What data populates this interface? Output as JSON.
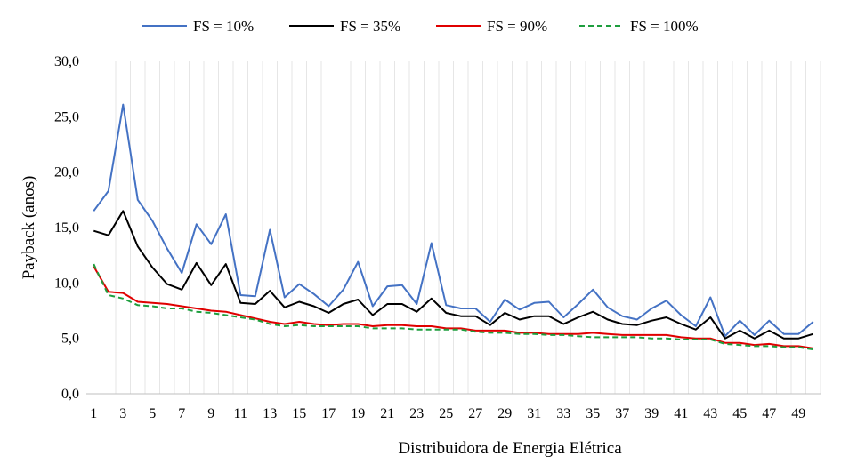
{
  "chart_data": {
    "type": "line",
    "title": "",
    "xlabel": "Distribuidora de Energia Elétrica",
    "ylabel": "Payback (anos)",
    "ylim": [
      0,
      30
    ],
    "yticks": [
      "0,0",
      "5,0",
      "10,0",
      "15,0",
      "20,0",
      "25,0",
      "30,0"
    ],
    "x": [
      1,
      2,
      3,
      4,
      5,
      6,
      7,
      8,
      9,
      10,
      11,
      12,
      13,
      14,
      15,
      16,
      17,
      18,
      19,
      20,
      21,
      22,
      23,
      24,
      25,
      26,
      27,
      28,
      29,
      30,
      31,
      32,
      33,
      34,
      35,
      36,
      37,
      38,
      39,
      40,
      41,
      42,
      43,
      44,
      45,
      46,
      47,
      48,
      49,
      50
    ],
    "xtick_labels": [
      "1",
      "3",
      "5",
      "7",
      "9",
      "11",
      "13",
      "15",
      "17",
      "19",
      "21",
      "23",
      "25",
      "27",
      "29",
      "31",
      "33",
      "35",
      "37",
      "39",
      "41",
      "43",
      "45",
      "47",
      "49"
    ],
    "grid": "vertical",
    "legend_position": "top",
    "series": [
      {
        "name": "FS = 10%",
        "color": "#4472C4",
        "dash": "solid",
        "values": [
          16.5,
          18.3,
          26.1,
          17.5,
          15.6,
          13.1,
          10.9,
          15.3,
          13.5,
          16.2,
          8.9,
          8.8,
          14.8,
          8.7,
          9.9,
          9.0,
          7.9,
          9.4,
          11.9,
          7.9,
          9.7,
          9.8,
          8.1,
          13.6,
          8.0,
          7.7,
          7.7,
          6.5,
          8.5,
          7.6,
          8.2,
          8.3,
          6.9,
          8.1,
          9.4,
          7.8,
          7.0,
          6.7,
          7.7,
          8.4,
          7.1,
          6.1,
          8.7,
          5.2,
          6.6,
          5.3,
          6.6,
          5.4,
          5.4,
          6.5
        ]
      },
      {
        "name": "FS = 35%",
        "color": "#000000",
        "dash": "solid",
        "values": [
          14.7,
          14.3,
          16.5,
          13.3,
          11.4,
          9.9,
          9.4,
          11.8,
          9.8,
          11.7,
          8.2,
          8.1,
          9.3,
          7.8,
          8.3,
          7.9,
          7.3,
          8.1,
          8.5,
          7.1,
          8.1,
          8.1,
          7.4,
          8.6,
          7.3,
          7.0,
          7.0,
          6.2,
          7.3,
          6.7,
          7.0,
          7.0,
          6.3,
          6.9,
          7.4,
          6.7,
          6.3,
          6.2,
          6.6,
          6.9,
          6.3,
          5.8,
          6.9,
          5.0,
          5.7,
          5.0,
          5.7,
          5.0,
          5.0,
          5.4
        ]
      },
      {
        "name": "FS = 90%",
        "color": "#E00000",
        "dash": "solid",
        "values": [
          11.5,
          9.2,
          9.1,
          8.3,
          8.2,
          8.1,
          7.9,
          7.7,
          7.5,
          7.4,
          7.1,
          6.8,
          6.5,
          6.3,
          6.5,
          6.3,
          6.2,
          6.3,
          6.3,
          6.1,
          6.2,
          6.2,
          6.1,
          6.1,
          5.9,
          5.9,
          5.7,
          5.7,
          5.7,
          5.5,
          5.5,
          5.4,
          5.4,
          5.4,
          5.5,
          5.4,
          5.3,
          5.3,
          5.3,
          5.3,
          5.1,
          5.0,
          5.0,
          4.6,
          4.6,
          4.4,
          4.5,
          4.3,
          4.3,
          4.1
        ]
      },
      {
        "name": "FS = 100%",
        "color": "#1E9E3E",
        "dash": "dashed",
        "values": [
          11.7,
          8.9,
          8.6,
          8.0,
          7.9,
          7.7,
          7.7,
          7.4,
          7.3,
          7.1,
          6.9,
          6.7,
          6.3,
          6.1,
          6.2,
          6.1,
          6.1,
          6.1,
          6.1,
          5.9,
          5.9,
          5.9,
          5.8,
          5.8,
          5.8,
          5.8,
          5.6,
          5.5,
          5.5,
          5.4,
          5.4,
          5.3,
          5.3,
          5.2,
          5.1,
          5.1,
          5.1,
          5.1,
          5.0,
          5.0,
          4.9,
          4.9,
          4.9,
          4.5,
          4.4,
          4.3,
          4.3,
          4.2,
          4.2,
          4.0
        ]
      }
    ]
  }
}
